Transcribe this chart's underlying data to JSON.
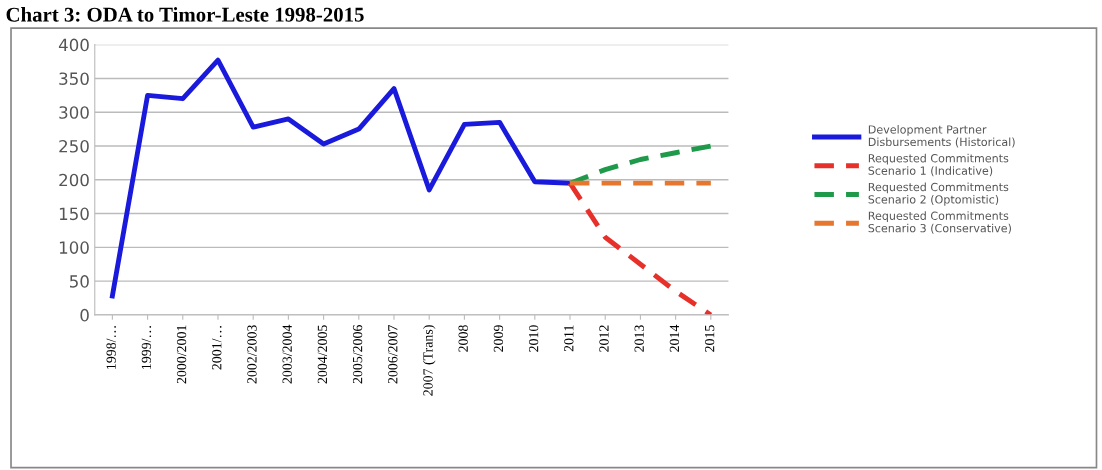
{
  "chart_data": {
    "type": "line",
    "title": "Chart 3: ODA to Timor-Leste 1998-2015",
    "categories": [
      "1998/…",
      "1999/…",
      "2000/2001",
      "2001/…",
      "2002/2003",
      "2003/2004",
      "2004/2005",
      "2005/2006",
      "2006/2007",
      "2007 (Trans)",
      "2008",
      "2009",
      "2010",
      "2011",
      "2012",
      "2013",
      "2014",
      "2015"
    ],
    "series": [
      {
        "name": "Development Partner Disbursements (Historical)",
        "color": "#1a1adc",
        "line_style": "solid",
        "values": [
          28,
          325,
          320,
          377,
          278,
          290,
          253,
          275,
          335,
          185,
          282,
          285,
          197,
          195,
          null,
          null,
          null,
          null
        ]
      },
      {
        "name": "Requested Commitments Scenario 1 (Indicative)",
        "color": "#e8302a",
        "line_style": "dashed",
        "values": [
          null,
          null,
          null,
          null,
          null,
          null,
          null,
          null,
          null,
          null,
          null,
          null,
          null,
          195,
          115,
          75,
          35,
          0
        ]
      },
      {
        "name": "Requested Commitments Scenario 2 (Optomistic)",
        "color": "#1f9a4a",
        "line_style": "dashed",
        "values": [
          null,
          null,
          null,
          null,
          null,
          null,
          null,
          null,
          null,
          null,
          null,
          null,
          null,
          195,
          215,
          230,
          240,
          250
        ]
      },
      {
        "name": "Requested Commitments Scenario 3 (Conservative)",
        "color": "#e6772e",
        "line_style": "dashed",
        "values": [
          null,
          null,
          null,
          null,
          null,
          null,
          null,
          null,
          null,
          null,
          null,
          null,
          null,
          195,
          195,
          195,
          195,
          195
        ]
      }
    ],
    "ylim": [
      0,
      400
    ],
    "yticks": [
      0,
      50,
      100,
      150,
      200,
      250,
      300,
      350,
      400
    ],
    "grid": "y",
    "legend": "right",
    "marker": "none"
  }
}
